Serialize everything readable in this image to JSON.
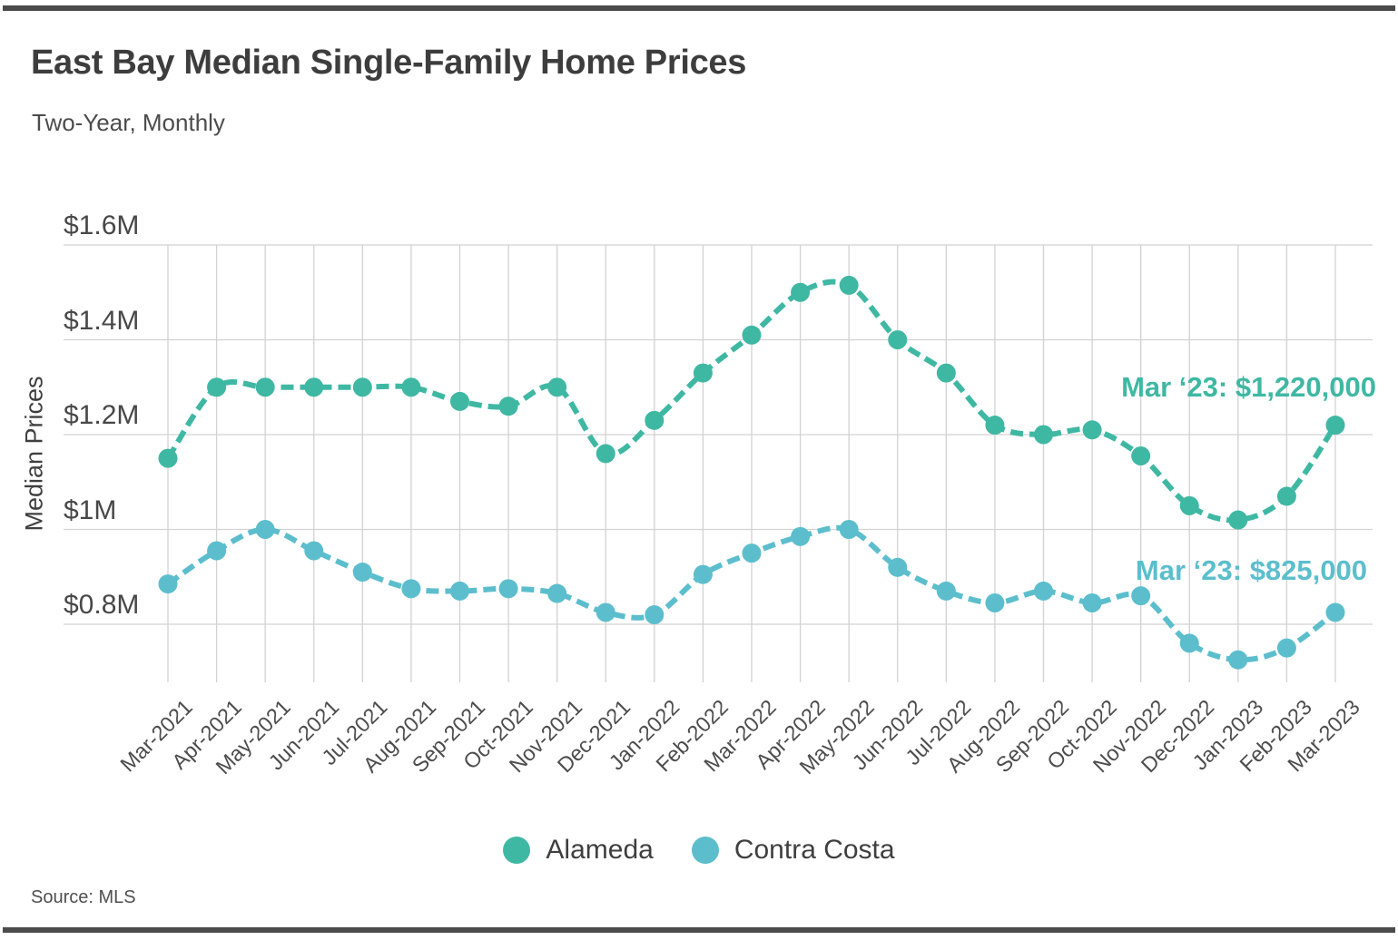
{
  "header": {
    "title": "East Bay Median Single-Family Home Prices",
    "subtitle": "Two-Year, Monthly"
  },
  "source": "Source: MLS",
  "frame": {
    "border_color": "#4b4b4b"
  },
  "chart_data": {
    "type": "line",
    "title": "East Bay Median Single-Family Home Prices",
    "subtitle": "Two-Year, Monthly",
    "xlabel": "",
    "ylabel": "Median Prices",
    "unit": "USD millions",
    "grid": true,
    "line_style": "dashed",
    "markers": true,
    "legend_position": "bottom",
    "ylim": [
      0.68,
      1.6
    ],
    "y_ticks": [
      {
        "label": "$1.6M",
        "value": 1.6
      },
      {
        "label": "$1.4M",
        "value": 1.4
      },
      {
        "label": "$1.2M",
        "value": 1.2
      },
      {
        "label": "$1M",
        "value": 1.0
      },
      {
        "label": "$0.8M",
        "value": 0.8
      }
    ],
    "x_categories": [
      "Mar-2021",
      "Apr-2021",
      "May-2021",
      "Jun-2021",
      "Jul-2021",
      "Aug-2021",
      "Sep-2021",
      "Oct-2021",
      "Nov-2021",
      "Dec-2021",
      "Jan-2022",
      "Feb-2022",
      "Mar-2022",
      "Apr-2022",
      "May-2022",
      "Jun-2022",
      "Jul-2022",
      "Aug-2022",
      "Sep-2022",
      "Oct-2022",
      "Nov-2022",
      "Dec-2022",
      "Jan-2023",
      "Feb-2023",
      "Mar-2023"
    ],
    "series": [
      {
        "name": "Alameda",
        "color": "#3fb8a3",
        "values": [
          1.15,
          1.3,
          1.3,
          1.3,
          1.3,
          1.3,
          1.27,
          1.26,
          1.3,
          1.16,
          1.23,
          1.33,
          1.41,
          1.5,
          1.515,
          1.4,
          1.33,
          1.22,
          1.2,
          1.21,
          1.155,
          1.05,
          1.02,
          1.07,
          1.22
        ]
      },
      {
        "name": "Contra Costa",
        "color": "#5cbecd",
        "values": [
          0.885,
          0.955,
          1.0,
          0.955,
          0.91,
          0.875,
          0.87,
          0.875,
          0.865,
          0.825,
          0.82,
          0.905,
          0.95,
          0.985,
          1.0,
          0.92,
          0.87,
          0.845,
          0.87,
          0.845,
          0.86,
          0.76,
          0.725,
          0.75,
          0.825
        ]
      }
    ],
    "annotations": [
      {
        "series": "Alameda",
        "text": "Mar ‘23: $1,220,000"
      },
      {
        "series": "Contra Costa",
        "text": "Mar ‘23: $825,000"
      }
    ]
  }
}
